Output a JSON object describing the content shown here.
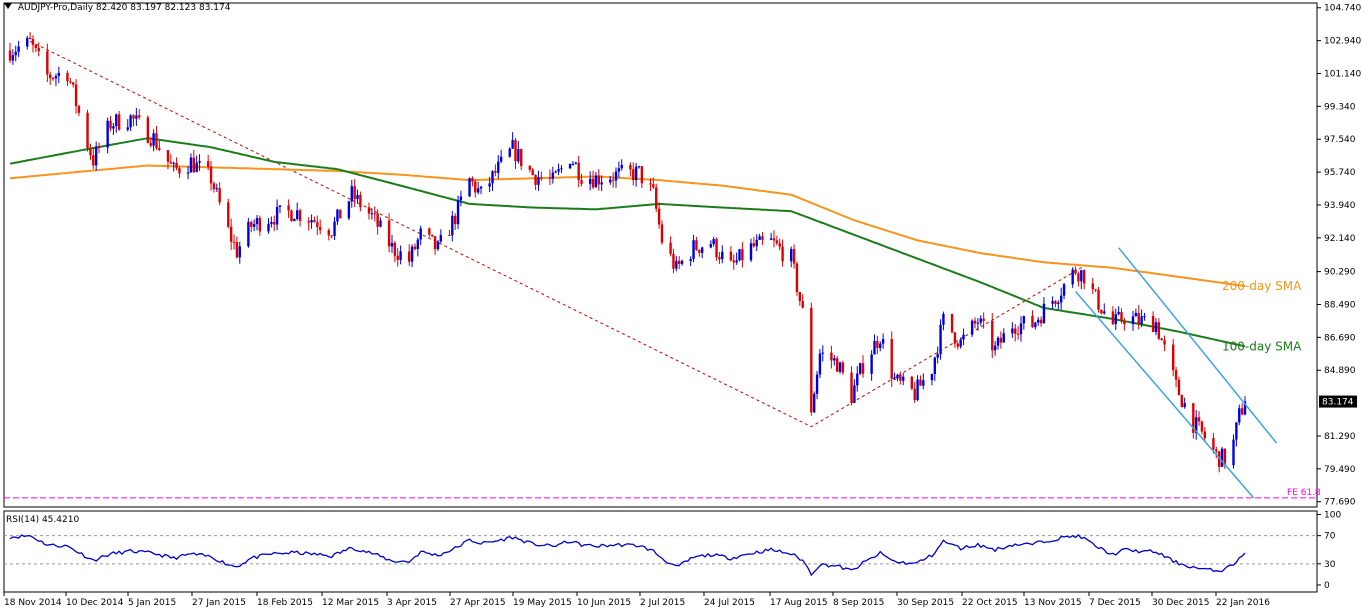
{
  "header": {
    "symbol": "AUDJPY-Pro,Daily",
    "ohlc": "82.420 83.197 82.123 83.174"
  },
  "rsi_panel": {
    "label": "RSI(14) 45.4210"
  },
  "annotations": {
    "sma200": "200-day SMA",
    "sma100": "100-day SMA",
    "fe": "FE 61.8",
    "last_price": "83.174"
  },
  "colors": {
    "bull": "#0000dd",
    "bear": "#dd0000",
    "sma200": "#f7941d",
    "sma100": "#1a7d1a",
    "channel": "#3da2e6",
    "fib": "#ff00ff",
    "rsi": "#0000cc",
    "zigzag": "#cc0000"
  },
  "chart_data": [
    {
      "type": "candlestick",
      "title": "AUDJPY-Pro,Daily",
      "y_tick_labels": [
        "104.740",
        "102.940",
        "101.140",
        "99.340",
        "97.540",
        "95.740",
        "93.940",
        "92.140",
        "90.290",
        "88.490",
        "86.690",
        "84.890",
        "83.174",
        "81.290",
        "79.490",
        "77.690"
      ],
      "y_ticks": [
        104.74,
        102.94,
        101.14,
        99.34,
        97.54,
        95.74,
        93.94,
        92.14,
        90.29,
        88.49,
        86.69,
        84.89,
        81.29,
        79.49,
        77.69
      ],
      "ylim": [
        77.4,
        105.0
      ],
      "x_tick_labels": [
        "18 Nov 2014",
        "10 Dec 2014",
        "5 Jan 2015",
        "27 Jan 2015",
        "18 Feb 2015",
        "12 Mar 2015",
        "3 Apr 2015",
        "27 Apr 2015",
        "19 May 2015",
        "10 Jun 2015",
        "2 Jul 2015",
        "24 Jul 2015",
        "17 Aug 2015",
        "8 Sep 2015",
        "30 Sep 2015",
        "22 Oct 2015",
        "13 Nov 2015",
        "7 Dec 2015",
        "30 Dec 2015",
        "22 Jan 2016"
      ],
      "x_range": [
        "2014-11-18",
        "2016-01-22"
      ],
      "last_price": 83.174,
      "close_path": [
        [
          "2014-11-18",
          102.4
        ],
        [
          "2014-11-25",
          102.8
        ],
        [
          "2014-12-01",
          101.0
        ],
        [
          "2014-12-08",
          101.2
        ],
        [
          "2014-12-15",
          97.3
        ],
        [
          "2014-12-17",
          96.4
        ],
        [
          "2014-12-23",
          98.4
        ],
        [
          "2014-12-30",
          98.7
        ],
        [
          "2015-01-07",
          97.6
        ],
        [
          "2015-01-14",
          95.8
        ],
        [
          "2015-01-20",
          96.3
        ],
        [
          "2015-01-27",
          95.4
        ],
        [
          "2015-02-02",
          92.5
        ],
        [
          "2015-02-05",
          91.4
        ],
        [
          "2015-02-10",
          92.8
        ],
        [
          "2015-02-17",
          93.3
        ],
        [
          "2015-02-25",
          93.6
        ],
        [
          "2015-03-03",
          93.2
        ],
        [
          "2015-03-10",
          92.6
        ],
        [
          "2015-03-17",
          94.5
        ],
        [
          "2015-03-24",
          93.3
        ],
        [
          "2015-03-31",
          91.6
        ],
        [
          "2015-04-06",
          90.9
        ],
        [
          "2015-04-10",
          92.3
        ],
        [
          "2015-04-16",
          91.5
        ],
        [
          "2015-04-22",
          93.3
        ],
        [
          "2015-04-27",
          95.3
        ],
        [
          "2015-05-01",
          94.5
        ],
        [
          "2015-05-06",
          95.7
        ],
        [
          "2015-05-12",
          97.0
        ],
        [
          "2015-05-19",
          95.6
        ],
        [
          "2015-05-26",
          95.2
        ],
        [
          "2015-06-01",
          96.6
        ],
        [
          "2015-06-05",
          95.6
        ],
        [
          "2015-06-10",
          95.4
        ],
        [
          "2015-06-18",
          95.6
        ],
        [
          "2015-06-25",
          95.7
        ],
        [
          "2015-06-30",
          94.5
        ],
        [
          "2015-07-03",
          92.0
        ],
        [
          "2015-07-08",
          90.4
        ],
        [
          "2015-07-14",
          91.6
        ],
        [
          "2015-07-20",
          91.9
        ],
        [
          "2015-07-27",
          90.5
        ],
        [
          "2015-08-03",
          91.6
        ],
        [
          "2015-08-10",
          91.9
        ],
        [
          "2015-08-17",
          91.0
        ],
        [
          "2015-08-21",
          88.0
        ],
        [
          "2015-08-24",
          82.8
        ],
        [
          "2015-08-27",
          85.8
        ],
        [
          "2015-09-02",
          85.3
        ],
        [
          "2015-09-07",
          83.5
        ],
        [
          "2015-09-11",
          85.2
        ],
        [
          "2015-09-17",
          86.8
        ],
        [
          "2015-09-22",
          84.3
        ],
        [
          "2015-09-29",
          83.6
        ],
        [
          "2015-10-05",
          85.0
        ],
        [
          "2015-10-09",
          87.6
        ],
        [
          "2015-10-15",
          86.4
        ],
        [
          "2015-10-21",
          87.6
        ],
        [
          "2015-10-27",
          86.0
        ],
        [
          "2015-11-02",
          87.4
        ],
        [
          "2015-11-09",
          87.4
        ],
        [
          "2015-11-13",
          88.2
        ],
        [
          "2015-11-18",
          89.1
        ],
        [
          "2015-11-24",
          90.4
        ],
        [
          "2015-11-27",
          90.1
        ],
        [
          "2015-12-01",
          88.8
        ],
        [
          "2015-12-07",
          87.4
        ],
        [
          "2015-12-11",
          87.8
        ],
        [
          "2015-12-16",
          87.6
        ],
        [
          "2015-12-22",
          87.5
        ],
        [
          "2015-12-29",
          84.0
        ],
        [
          "2016-01-04",
          82.0
        ],
        [
          "2016-01-08",
          81.2
        ],
        [
          "2016-01-12",
          80.2
        ],
        [
          "2016-01-15",
          80.0
        ],
        [
          "2016-01-18",
          80.9
        ],
        [
          "2016-01-20",
          82.4
        ],
        [
          "2016-01-22",
          83.174
        ]
      ],
      "sma100": [
        [
          "2014-11-18",
          96.2
        ],
        [
          "2014-12-15",
          97.0
        ],
        [
          "2015-01-05",
          97.6
        ],
        [
          "2015-01-27",
          97.1
        ],
        [
          "2015-02-18",
          96.3
        ],
        [
          "2015-03-12",
          95.9
        ],
        [
          "2015-04-03",
          95.0
        ],
        [
          "2015-04-27",
          94.0
        ],
        [
          "2015-05-19",
          93.8
        ],
        [
          "2015-06-10",
          93.7
        ],
        [
          "2015-07-02",
          94.0
        ],
        [
          "2015-07-24",
          93.8
        ],
        [
          "2015-08-17",
          93.6
        ],
        [
          "2015-09-08",
          92.3
        ],
        [
          "2015-09-30",
          91.0
        ],
        [
          "2015-10-22",
          89.7
        ],
        [
          "2015-11-13",
          88.3
        ],
        [
          "2015-12-07",
          87.7
        ],
        [
          "2015-12-30",
          87.0
        ],
        [
          "2016-01-22",
          86.2
        ]
      ],
      "sma200": [
        [
          "2014-11-18",
          95.4
        ],
        [
          "2014-12-15",
          95.8
        ],
        [
          "2015-01-05",
          96.1
        ],
        [
          "2015-01-27",
          96.0
        ],
        [
          "2015-02-18",
          95.9
        ],
        [
          "2015-03-12",
          95.8
        ],
        [
          "2015-04-03",
          95.6
        ],
        [
          "2015-04-27",
          95.3
        ],
        [
          "2015-05-19",
          95.4
        ],
        [
          "2015-06-10",
          95.5
        ],
        [
          "2015-07-02",
          95.3
        ],
        [
          "2015-07-24",
          95.0
        ],
        [
          "2015-08-17",
          94.5
        ],
        [
          "2015-09-08",
          93.1
        ],
        [
          "2015-09-30",
          92.0
        ],
        [
          "2015-10-22",
          91.3
        ],
        [
          "2015-11-13",
          90.8
        ],
        [
          "2015-12-07",
          90.5
        ],
        [
          "2015-12-30",
          90.0
        ],
        [
          "2016-01-22",
          89.5
        ]
      ],
      "zigzag": [
        [
          "2014-11-25",
          102.9
        ],
        [
          "2015-08-24",
          81.8
        ],
        [
          "2015-11-27",
          90.6
        ]
      ],
      "channel": {
        "upper": [
          [
            "2015-12-09",
            91.6
          ],
          [
            "2016-02-02",
            80.9
          ]
        ],
        "lower": [
          [
            "2015-11-24",
            89.2
          ],
          [
            "2016-01-25",
            77.9
          ]
        ]
      },
      "fe_level": 77.9
    },
    {
      "type": "line",
      "title": "RSI(14) 45.4210",
      "y_tick_labels": [
        "100",
        "70",
        "30",
        "0"
      ],
      "y_ticks": [
        100,
        70,
        30,
        0
      ],
      "ylim": [
        -10,
        105
      ],
      "last_value": 45.421,
      "series": [
        {
          "values_path": [
            [
              "2014-11-18",
              68
            ],
            [
              "2014-11-25",
              70
            ],
            [
              "2014-12-01",
              57
            ],
            [
              "2014-12-08",
              55
            ],
            [
              "2014-12-17",
              35
            ],
            [
              "2014-12-23",
              44
            ],
            [
              "2014-12-30",
              48
            ],
            [
              "2015-01-07",
              45
            ],
            [
              "2015-01-14",
              38
            ],
            [
              "2015-01-20",
              44
            ],
            [
              "2015-01-27",
              40
            ],
            [
              "2015-02-02",
              29
            ],
            [
              "2015-02-05",
              26
            ],
            [
              "2015-02-10",
              38
            ],
            [
              "2015-02-17",
              44
            ],
            [
              "2015-02-25",
              46
            ],
            [
              "2015-03-03",
              44
            ],
            [
              "2015-03-10",
              41
            ],
            [
              "2015-03-17",
              53
            ],
            [
              "2015-03-24",
              45
            ],
            [
              "2015-03-31",
              34
            ],
            [
              "2015-04-06",
              33
            ],
            [
              "2015-04-10",
              47
            ],
            [
              "2015-04-16",
              42
            ],
            [
              "2015-04-22",
              52
            ],
            [
              "2015-04-27",
              64
            ],
            [
              "2015-05-01",
              59
            ],
            [
              "2015-05-06",
              62
            ],
            [
              "2015-05-12",
              68
            ],
            [
              "2015-05-19",
              58
            ],
            [
              "2015-05-26",
              55
            ],
            [
              "2015-06-01",
              62
            ],
            [
              "2015-06-05",
              57
            ],
            [
              "2015-06-10",
              55
            ],
            [
              "2015-06-18",
              57
            ],
            [
              "2015-06-25",
              56
            ],
            [
              "2015-06-30",
              48
            ],
            [
              "2015-07-03",
              38
            ],
            [
              "2015-07-08",
              25
            ],
            [
              "2015-07-14",
              39
            ],
            [
              "2015-07-20",
              43
            ],
            [
              "2015-07-27",
              38
            ],
            [
              "2015-08-03",
              45
            ],
            [
              "2015-08-10",
              50
            ],
            [
              "2015-08-17",
              44
            ],
            [
              "2015-08-21",
              35
            ],
            [
              "2015-08-24",
              16
            ],
            [
              "2015-08-27",
              29
            ],
            [
              "2015-09-02",
              27
            ],
            [
              "2015-09-07",
              20
            ],
            [
              "2015-09-11",
              31
            ],
            [
              "2015-09-17",
              45
            ],
            [
              "2015-09-22",
              33
            ],
            [
              "2015-09-29",
              30
            ],
            [
              "2015-10-05",
              42
            ],
            [
              "2015-10-09",
              62
            ],
            [
              "2015-10-15",
              52
            ],
            [
              "2015-10-21",
              57
            ],
            [
              "2015-10-27",
              50
            ],
            [
              "2015-11-02",
              57
            ],
            [
              "2015-11-09",
              58
            ],
            [
              "2015-11-13",
              62
            ],
            [
              "2015-11-18",
              66
            ],
            [
              "2015-11-24",
              70
            ],
            [
              "2015-11-27",
              66
            ],
            [
              "2015-12-01",
              55
            ],
            [
              "2015-12-07",
              43
            ],
            [
              "2015-12-11",
              50
            ],
            [
              "2015-12-16",
              48
            ],
            [
              "2015-12-22",
              47
            ],
            [
              "2015-12-29",
              32
            ],
            [
              "2016-01-04",
              25
            ],
            [
              "2016-01-08",
              22
            ],
            [
              "2016-01-12",
              20
            ],
            [
              "2016-01-15",
              22
            ],
            [
              "2016-01-18",
              30
            ],
            [
              "2016-01-20",
              38
            ],
            [
              "2016-01-22",
              45.4
            ]
          ]
        }
      ]
    }
  ]
}
